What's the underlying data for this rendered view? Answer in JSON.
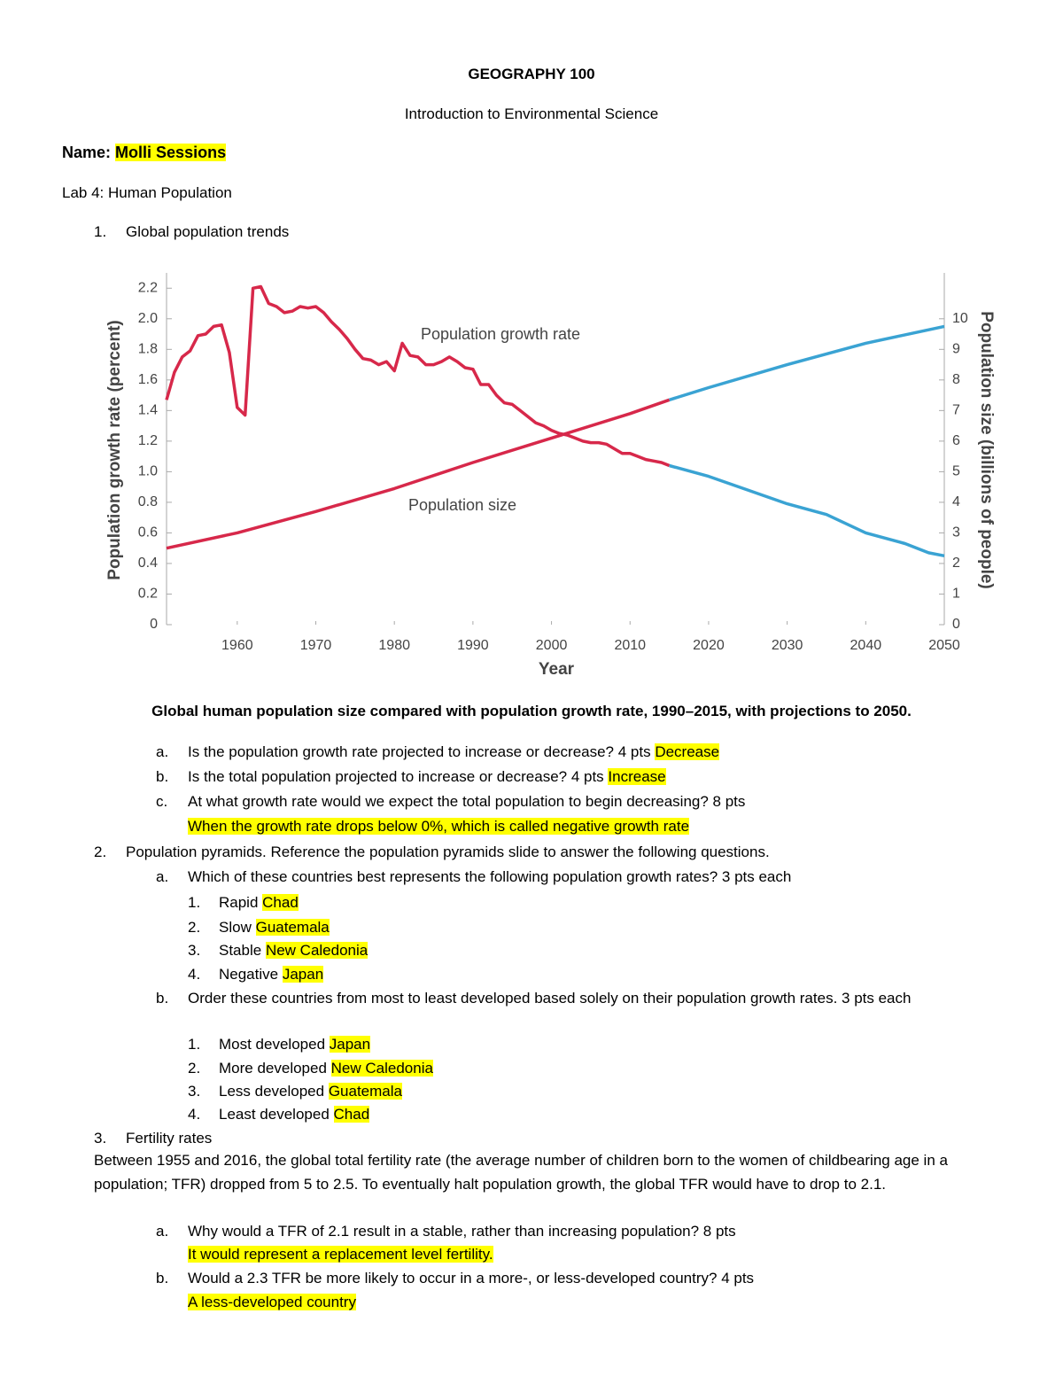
{
  "header": {
    "title": "GEOGRAPHY 100",
    "subtitle": "Introduction to Environmental Science"
  },
  "name": {
    "label": "Name:",
    "value": "Molli Sessions"
  },
  "lab": "Lab 4: Human Population",
  "q1": {
    "number": "1.",
    "title": "Global population trends",
    "caption": "Global human population size compared with population growth rate, 1990–2015, with projections to 2050.",
    "items": [
      {
        "letter": "a.",
        "text": "Is the population growth rate projected to increase or decrease? 4 pts",
        "answer": "Decrease"
      },
      {
        "letter": "b.",
        "text": "Is the total population projected to increase or decrease? 4 pts",
        "answer": "Increase"
      },
      {
        "letter": "c.",
        "text": "At what growth rate would we expect the total population to begin decreasing?  8 pts",
        "answer": "When the growth rate drops below 0%, which is called negative growth rate"
      }
    ]
  },
  "q2": {
    "number": "2.",
    "title": "Population pyramids. Reference the population pyramids slide to answer the following questions.",
    "items": [
      {
        "letter": "a.",
        "text": "Which of these countries best represents the following population growth rates? 3 pts each",
        "list": [
          {
            "number": "1.",
            "label": "Rapid",
            "answer": "Chad"
          },
          {
            "number": "2.",
            "label": "Slow",
            "answer": "Guatemala"
          },
          {
            "number": "3.",
            "label": "Stable",
            "answer": "New Caledonia"
          },
          {
            "number": "4.",
            "label": "Negative",
            "answer": "Japan"
          }
        ]
      },
      {
        "letter": "b.",
        "text": "Order these countries from most to least developed based solely on their population growth rates. 3 pts each",
        "list": [
          {
            "number": "1.",
            "label": "Most developed",
            "answer": "Japan"
          },
          {
            "number": "2.",
            "label": "More developed",
            "answer": "New Caledonia"
          },
          {
            "number": "3.",
            "label": "Less developed",
            "answer": "Guatemala"
          },
          {
            "number": "4.",
            "label": "Least developed",
            "answer": "Chad"
          }
        ]
      }
    ]
  },
  "q3": {
    "number": "3.",
    "title": "Fertility rates",
    "paragraph": "Between 1955 and 2016, the global total fertility rate (the average number of children born to the women of childbearing age in a population; TFR) dropped from 5 to 2.5. To eventually halt population growth, the global TFR would have to drop to 2.1.",
    "items": [
      {
        "letter": "a.",
        "text": "Why would a TFR of 2.1 result in a stable, rather than increasing population?   8 pts",
        "answer": "It would represent a replacement level fertility."
      },
      {
        "letter": "b.",
        "text": "Would a 2.3 TFR be more likely to occur in a more-, or less-developed country?  4 pts",
        "answer": "A less-developed country"
      }
    ]
  },
  "chart_data": {
    "type": "line",
    "xlabel": "Year",
    "ylabel": "Population growth rate (percent)",
    "y2label": "Population size (billions of people)",
    "xlim": [
      1951,
      2050
    ],
    "xticks": [
      1960,
      1970,
      1980,
      1990,
      2000,
      2010,
      2020,
      2030,
      2040,
      2050
    ],
    "ylim": [
      0,
      2.3
    ],
    "yticks": [
      0,
      0.2,
      0.4,
      0.6,
      0.8,
      {
        "value": 1,
        "label": "1.0"
      },
      1.2,
      1.4,
      1.6,
      1.8,
      {
        "value": 2,
        "label": "2.0"
      },
      2.2
    ],
    "y2lim": [
      0,
      11.5
    ],
    "y2ticks": [
      0,
      1,
      2,
      3,
      4,
      5,
      6,
      7,
      8,
      9,
      10
    ],
    "series": [
      {
        "name": "Population growth rate",
        "color": "#d7284a",
        "x": [
          1951,
          1952,
          1953,
          1954,
          1955,
          1956,
          1957,
          1958,
          1959,
          1960,
          1961,
          1962,
          1963,
          1964,
          1965,
          1966,
          1967,
          1968,
          1969,
          1970,
          1971,
          1972,
          1973,
          1974,
          1975,
          1976,
          1977,
          1978,
          1979,
          1980,
          1981,
          1982,
          1983,
          1984,
          1985,
          1986,
          1987,
          1988,
          1989,
          1990,
          1991,
          1992,
          1993,
          1994,
          1995,
          1996,
          1997,
          1998,
          1999,
          2000,
          2001,
          2002,
          2003,
          2004,
          2005,
          2006,
          2007,
          2008,
          2009,
          2010,
          2011,
          2012,
          2013,
          2014,
          2015
        ],
        "values": [
          1.47,
          1.65,
          1.75,
          1.79,
          1.89,
          1.9,
          1.95,
          1.96,
          1.78,
          1.42,
          1.37,
          2.2,
          2.21,
          2.1,
          2.08,
          2.04,
          2.05,
          2.08,
          2.07,
          2.08,
          2.04,
          1.98,
          1.93,
          1.87,
          1.8,
          1.74,
          1.73,
          1.7,
          1.72,
          1.66,
          1.84,
          1.76,
          1.75,
          1.7,
          1.7,
          1.72,
          1.75,
          1.72,
          1.68,
          1.67,
          1.57,
          1.57,
          1.5,
          1.45,
          1.44,
          1.4,
          1.36,
          1.32,
          1.3,
          1.27,
          1.25,
          1.24,
          1.22,
          1.2,
          1.19,
          1.19,
          1.18,
          1.15,
          1.12,
          1.12,
          1.1,
          1.08,
          1.07,
          1.06,
          1.04
        ]
      },
      {
        "color": "#3aa3d3",
        "x": [
          2015,
          2020,
          2025,
          2030,
          2035,
          2040,
          2045,
          2048,
          2050
        ],
        "values": [
          1.04,
          0.97,
          0.88,
          0.79,
          0.72,
          0.6,
          0.53,
          0.47,
          0.45
        ]
      },
      {
        "name": "Population size",
        "color": "#d7284a",
        "axis": "y2",
        "x": [
          1951,
          1960,
          1970,
          1980,
          1990,
          2000,
          2010,
          2015
        ],
        "values": [
          2.5,
          3.0,
          3.7,
          4.45,
          5.3,
          6.1,
          6.9,
          7.35
        ]
      },
      {
        "color": "#3aa3d3",
        "axis": "y2",
        "x": [
          2015,
          2020,
          2030,
          2040,
          2050
        ],
        "values": [
          7.35,
          7.75,
          8.5,
          9.2,
          9.75
        ]
      }
    ]
  }
}
